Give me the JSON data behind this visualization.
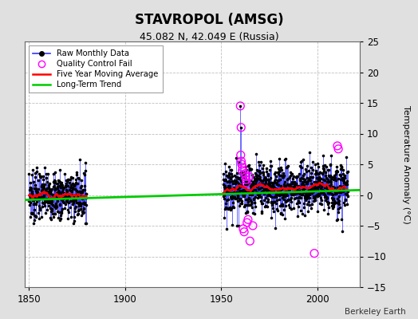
{
  "title": "STAVROPOL (AMSG)",
  "subtitle": "45.082 N, 42.049 E (Russia)",
  "ylabel": "Temperature Anomaly (°C)",
  "attribution": "Berkeley Earth",
  "xlim": [
    1848,
    2022
  ],
  "ylim": [
    -15,
    25
  ],
  "yticks": [
    -15,
    -10,
    -5,
    0,
    5,
    10,
    15,
    20,
    25
  ],
  "xticks": [
    1850,
    1900,
    1950,
    2000
  ],
  "bg_color": "#e0e0e0",
  "plot_bg_color": "#ffffff",
  "grid_color": "#c0c0c0",
  "raw_line_color": "#3333ff",
  "raw_dot_color": "#000000",
  "qc_fail_color": "#ff00ff",
  "ma_color": "#ff0000",
  "trend_color": "#00cc00",
  "seg1_start": 1850,
  "seg1_end": 1880,
  "seg2_start": 1951,
  "seg2_end": 2016,
  "trend_x": [
    1848,
    2022
  ],
  "trend_y": [
    -0.8,
    0.8
  ],
  "seg1_mean": 0.0,
  "seg1_std": 2.0,
  "seg2_mean": 1.2,
  "seg2_std": 2.2,
  "spike_year": 1960,
  "spike_val": 14.5,
  "spike2_year": 1960,
  "spike2_val": 11.0,
  "qc_low_val": -7.5,
  "qc_low_year": 1998,
  "qc_high_year": 2010,
  "qc_high_val": 8.0
}
